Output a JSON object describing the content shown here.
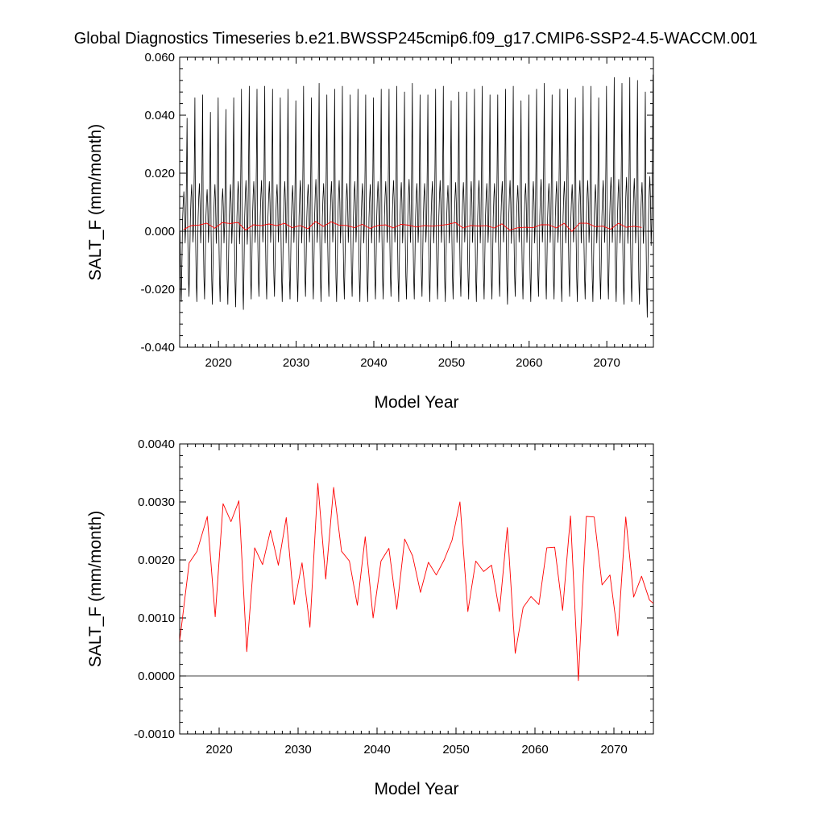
{
  "title": "Global Diagnostics Timeseries b.e21.BWSSP245cmip6.f09_g17.CMIP6-SSP2-4.5-WACCM.001",
  "colors": {
    "monthly": "#000000",
    "annual": "#ff0000",
    "zero_line": "#000000"
  },
  "chart_data": [
    {
      "type": "line",
      "xlabel": "Model Year",
      "ylabel": "SALT_F (mm/month)",
      "xlim": [
        2015,
        2076
      ],
      "ylim": [
        -0.04,
        0.06
      ],
      "x_ticks": [
        2020,
        2030,
        2040,
        2050,
        2060,
        2070
      ],
      "x_tick_labels": [
        "2020",
        "2030",
        "2040",
        "2050",
        "2060",
        "2070"
      ],
      "y_ticks": [
        -0.04,
        -0.02,
        0.0,
        0.02,
        0.04,
        0.06
      ],
      "y_tick_labels": [
        "-0.040",
        "-0.020",
        "0.000",
        "0.020",
        "0.040",
        "0.060"
      ],
      "reference_line": 0,
      "series": [
        {
          "kind": "monthly",
          "color": "#000000",
          "start_year": 2015,
          "points_per_year": 12,
          "annual_maxima": [
            0.039,
            0.046,
            0.047,
            0.041,
            0.046,
            0.042,
            0.046,
            0.049,
            0.05,
            0.049,
            0.05,
            0.049,
            0.046,
            0.049,
            0.045,
            0.05,
            0.046,
            0.051,
            0.047,
            0.049,
            0.05,
            0.047,
            0.049,
            0.047,
            0.046,
            0.049,
            0.049,
            0.05,
            0.048,
            0.051,
            0.047,
            0.047,
            0.049,
            0.05,
            0.045,
            0.048,
            0.048,
            0.049,
            0.05,
            0.047,
            0.047,
            0.049,
            0.05,
            0.045,
            0.047,
            0.049,
            0.051,
            0.047,
            0.049,
            0.049,
            0.046,
            0.05,
            0.05,
            0.046,
            0.05,
            0.053,
            0.051,
            0.053,
            0.052,
            0.048,
            0.054
          ],
          "annual_minima": [
            -0.027,
            -0.025,
            -0.027,
            -0.026,
            -0.028,
            -0.027,
            -0.028,
            -0.029,
            -0.03,
            -0.026,
            -0.025,
            -0.026,
            -0.025,
            -0.027,
            -0.026,
            -0.027,
            -0.025,
            -0.026,
            -0.027,
            -0.025,
            -0.027,
            -0.026,
            -0.025,
            -0.027,
            -0.027,
            -0.026,
            -0.026,
            -0.025,
            -0.027,
            -0.026,
            -0.026,
            -0.025,
            -0.027,
            -0.026,
            -0.027,
            -0.026,
            -0.025,
            -0.026,
            -0.027,
            -0.026,
            -0.026,
            -0.025,
            -0.028,
            -0.025,
            -0.026,
            -0.027,
            -0.025,
            -0.026,
            -0.026,
            -0.027,
            -0.025,
            -0.027,
            -0.026,
            -0.027,
            -0.026,
            -0.026,
            -0.027,
            -0.028,
            -0.027,
            -0.028,
            -0.033
          ]
        },
        {
          "kind": "annual_mean",
          "color": "#ff0000",
          "x": [
            2015.5,
            2016.5,
            2017.5,
            2018.5,
            2019.5,
            2020.5,
            2021.5,
            2022.5,
            2023.5,
            2024.5,
            2025.5,
            2026.5,
            2027.5,
            2028.5,
            2029.5,
            2030.5,
            2031.5,
            2032.5,
            2033.5,
            2034.5,
            2035.5,
            2036.5,
            2037.5,
            2038.5,
            2039.5,
            2040.5,
            2041.5,
            2042.5,
            2043.5,
            2044.5,
            2045.5,
            2046.5,
            2047.5,
            2048.5,
            2049.5,
            2050.5,
            2051.5,
            2052.5,
            2053.5,
            2054.5,
            2055.5,
            2056.5,
            2057.5,
            2058.5,
            2059.5,
            2060.5,
            2061.5,
            2062.5,
            2063.5,
            2064.5,
            2065.5,
            2066.5,
            2067.5,
            2068.5,
            2069.5,
            2070.5,
            2071.5,
            2072.5,
            2073.5,
            2074.5
          ],
          "y": [
            0.0006,
            0.00195,
            0.00215,
            0.00275,
            0.00102,
            0.00297,
            0.00266,
            0.00302,
            0.00042,
            0.00221,
            0.00192,
            0.00251,
            0.00191,
            0.00273,
            0.00123,
            0.00195,
            0.00084,
            0.00332,
            0.00167,
            0.00325,
            0.00215,
            0.00198,
            0.00122,
            0.0024,
            0.001,
            0.00198,
            0.0022,
            0.00115,
            0.00236,
            0.00207,
            0.00144,
            0.00196,
            0.00174,
            0.002,
            0.00234,
            0.003,
            0.00111,
            0.00198,
            0.0018,
            0.00191,
            0.00111,
            0.00256,
            0.00039,
            0.00118,
            0.00137,
            0.00123,
            0.00221,
            0.00222,
            0.00113,
            0.00276,
            -8e-05,
            0.00275,
            0.00274,
            0.00157,
            0.00174,
            0.00069,
            0.00274,
            0.00136,
            0.00172,
            0.00131
          ]
        }
      ]
    },
    {
      "type": "line",
      "xlabel": "Model Year",
      "ylabel": "SALT_F (mm/month)",
      "xlim": [
        2015,
        2075
      ],
      "ylim": [
        -0.001,
        0.004
      ],
      "x_ticks": [
        2020,
        2030,
        2040,
        2050,
        2060,
        2070
      ],
      "x_tick_labels": [
        "2020",
        "2030",
        "2040",
        "2050",
        "2060",
        "2070"
      ],
      "y_ticks": [
        -0.001,
        0.0,
        0.001,
        0.002,
        0.003,
        0.004
      ],
      "y_tick_labels": [
        "-0.0010",
        "0.0000",
        "0.0010",
        "0.0020",
        "0.0030",
        "0.0040"
      ],
      "reference_line": 0,
      "series": [
        {
          "kind": "annual_mean",
          "color": "#ff0000",
          "x": [
            2015.0,
            2016.2,
            2017.2,
            2018.5,
            2019.5,
            2020.5,
            2021.5,
            2022.5,
            2023.5,
            2024.5,
            2025.5,
            2026.5,
            2027.5,
            2028.5,
            2029.5,
            2030.5,
            2031.5,
            2032.5,
            2033.5,
            2034.5,
            2035.5,
            2036.5,
            2037.5,
            2038.5,
            2039.5,
            2040.5,
            2041.5,
            2042.5,
            2043.5,
            2044.5,
            2045.5,
            2046.5,
            2047.5,
            2048.5,
            2049.5,
            2050.5,
            2051.5,
            2052.5,
            2053.5,
            2054.5,
            2055.5,
            2056.5,
            2057.5,
            2058.5,
            2059.5,
            2060.5,
            2061.5,
            2062.5,
            2063.5,
            2064.5,
            2065.5,
            2066.5,
            2067.5,
            2068.5,
            2069.5,
            2070.5,
            2071.5,
            2072.5,
            2073.5,
            2074.5,
            2075.0
          ],
          "y": [
            0.0006,
            0.00195,
            0.00215,
            0.00275,
            0.00102,
            0.00297,
            0.00266,
            0.00302,
            0.00042,
            0.00221,
            0.00192,
            0.00251,
            0.00191,
            0.00273,
            0.00123,
            0.00195,
            0.00084,
            0.00332,
            0.00167,
            0.00325,
            0.00215,
            0.00198,
            0.00122,
            0.0024,
            0.001,
            0.00198,
            0.0022,
            0.00115,
            0.00236,
            0.00207,
            0.00144,
            0.00196,
            0.00174,
            0.002,
            0.00234,
            0.003,
            0.00111,
            0.00198,
            0.0018,
            0.00191,
            0.00111,
            0.00256,
            0.00039,
            0.00118,
            0.00137,
            0.00123,
            0.00221,
            0.00222,
            0.00113,
            0.00276,
            -8e-05,
            0.00275,
            0.00274,
            0.00157,
            0.00174,
            0.00069,
            0.00274,
            0.00136,
            0.00172,
            0.00131,
            0.00125
          ]
        }
      ]
    }
  ]
}
